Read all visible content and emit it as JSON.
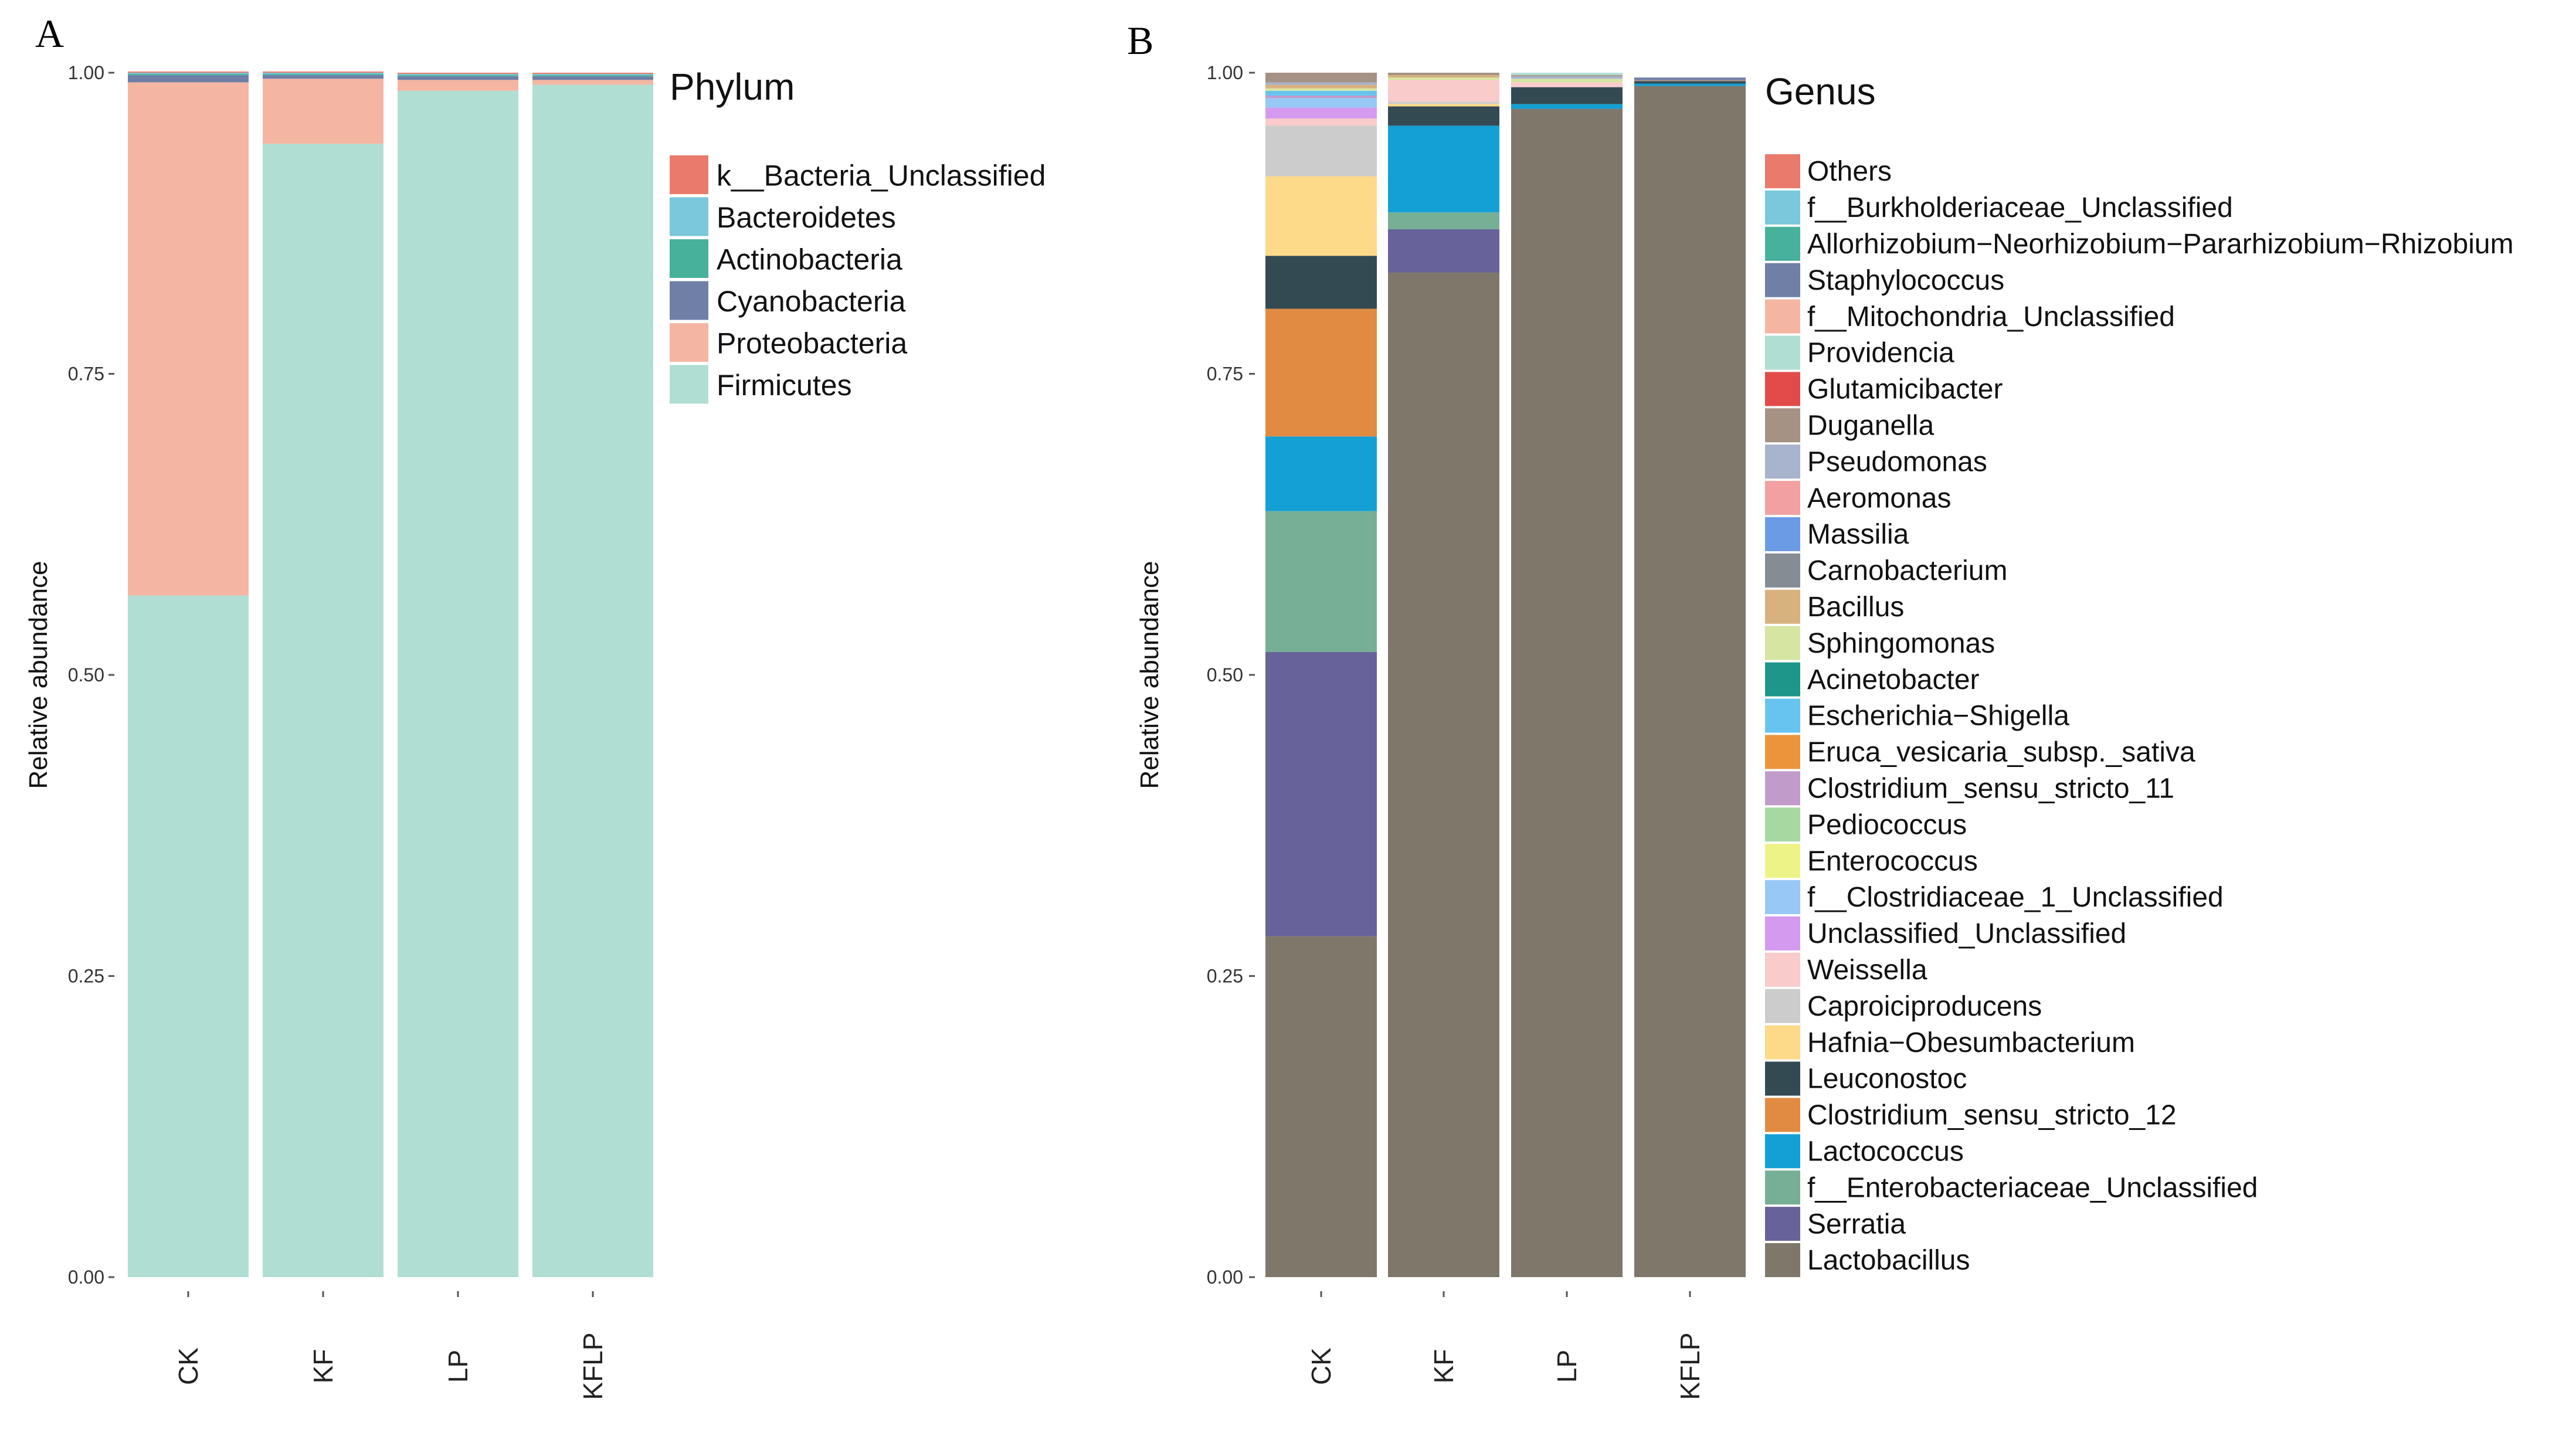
{
  "chart_data": [
    {
      "panel": "A",
      "type": "bar",
      "stacked": true,
      "title": "",
      "xlabel": "",
      "ylabel": "Relative abundance",
      "ylim": [
        0,
        1
      ],
      "yticks": [
        "0.00",
        "0.25",
        "0.50",
        "0.75",
        "1.00"
      ],
      "categories": [
        "CK",
        "KF",
        "LP",
        "KFLP"
      ],
      "legend_title": "Phylum",
      "legend_position": "right",
      "series": [
        {
          "name": "k__Bacteria_Unclassified",
          "color": "#E97A6C",
          "values": [
            0.001,
            0.001,
            0.001,
            0.001
          ]
        },
        {
          "name": "Bacteroidetes",
          "color": "#7BC7DB",
          "values": [
            0.001,
            0.001,
            0.001,
            0.001
          ]
        },
        {
          "name": "Actinobacteria",
          "color": "#47B19C",
          "values": [
            0.001,
            0.001,
            0.001,
            0.001
          ]
        },
        {
          "name": "Cyanobacteria",
          "color": "#6F7FA6",
          "values": [
            0.006,
            0.003,
            0.003,
            0.003
          ]
        },
        {
          "name": "Proteobacteria",
          "color": "#F4B6A3",
          "values": [
            0.426,
            0.054,
            0.009,
            0.004
          ]
        },
        {
          "name": "Firmicutes",
          "color": "#B1DED3",
          "values": [
            0.566,
            0.941,
            0.985,
            0.99
          ]
        }
      ]
    },
    {
      "panel": "B",
      "type": "bar",
      "stacked": true,
      "title": "",
      "xlabel": "",
      "ylabel": "Relative abundance",
      "ylim": [
        0,
        1
      ],
      "yticks": [
        "0.00",
        "0.25",
        "0.50",
        "0.75",
        "1.00"
      ],
      "categories": [
        "CK",
        "KF",
        "LP",
        "KFLP"
      ],
      "legend_title": "Genus",
      "legend_position": "right",
      "series": [
        {
          "name": "Others",
          "color": "#E97A6C",
          "values": [
            0,
            0,
            0,
            0
          ]
        },
        {
          "name": "f__Burkholderiaceae_Unclassified",
          "color": "#7BC7DB",
          "values": [
            0,
            0,
            0,
            0
          ]
        },
        {
          "name": "Allorhizobium−Neorhizobium−Pararhizobium−Rhizobium",
          "color": "#47B19C",
          "values": [
            0,
            0,
            0,
            0
          ]
        },
        {
          "name": "Staphylococcus",
          "color": "#6F7FA6",
          "values": [
            0,
            0,
            0,
            0.002
          ]
        },
        {
          "name": "f__Mitochondria_Unclassified",
          "color": "#F4B6A3",
          "values": [
            0,
            0,
            0,
            0
          ]
        },
        {
          "name": "Providencia",
          "color": "#B1DED3",
          "values": [
            0,
            0,
            0.002,
            0
          ]
        },
        {
          "name": "Glutamicibacter",
          "color": "#E34A4A",
          "values": [
            0,
            0,
            0,
            0
          ]
        },
        {
          "name": "Duganella",
          "color": "#A59285",
          "values": [
            0.008,
            0.002,
            0.001,
            0.001
          ]
        },
        {
          "name": "Pseudomonas",
          "color": "#A8B3CD",
          "values": [
            0.002,
            0,
            0.002,
            0
          ]
        },
        {
          "name": "Aeromonas",
          "color": "#F2A0A2",
          "values": [
            0,
            0,
            0,
            0
          ]
        },
        {
          "name": "Massilia",
          "color": "#6C9BE6",
          "values": [
            0,
            0,
            0,
            0
          ]
        },
        {
          "name": "Carnobacterium",
          "color": "#868C94",
          "values": [
            0,
            0,
            0,
            0
          ]
        },
        {
          "name": "Bacillus",
          "color": "#D7B27F",
          "values": [
            0.003,
            0.002,
            0,
            0
          ]
        },
        {
          "name": "Sphingomonas",
          "color": "#D6E5A1",
          "values": [
            0.002,
            0.002,
            0.003,
            0
          ]
        },
        {
          "name": "Acinetobacter",
          "color": "#1E968A",
          "values": [
            0,
            0,
            0,
            0
          ]
        },
        {
          "name": "Escherichia−Shigella",
          "color": "#67C4EE",
          "values": [
            0.004,
            0,
            0,
            0
          ]
        },
        {
          "name": "Eruca_vesicaria_subsp._sativa",
          "color": "#EC943C",
          "values": [
            0,
            0,
            0,
            0
          ]
        },
        {
          "name": "Clostridium_sensu_stricto_11",
          "color": "#C19BC9",
          "values": [
            0.002,
            0,
            0,
            0
          ]
        },
        {
          "name": "Pediococcus",
          "color": "#A7D8A1",
          "values": [
            0,
            0,
            0,
            0
          ]
        },
        {
          "name": "Enterococcus",
          "color": "#EEF388",
          "values": [
            0,
            0,
            0,
            0
          ]
        },
        {
          "name": "f__Clostridiaceae_1_Unclassified",
          "color": "#98C8F6",
          "values": [
            0.008,
            0,
            0,
            0
          ]
        },
        {
          "name": "Unclassified_Unclassified",
          "color": "#D39AF0",
          "values": [
            0.009,
            0,
            0,
            0
          ]
        },
        {
          "name": "Weissella",
          "color": "#F9CBCB",
          "values": [
            0.006,
            0.018,
            0.004,
            0
          ]
        },
        {
          "name": "Caproiciproducens",
          "color": "#CCCCCC",
          "values": [
            0.042,
            0.002,
            0,
            0
          ]
        },
        {
          "name": "Hafnia−Obesumbacterium",
          "color": "#FDD98A",
          "values": [
            0.066,
            0.002,
            0,
            0
          ]
        },
        {
          "name": "Leuconostoc",
          "color": "#344A52",
          "values": [
            0.044,
            0.016,
            0.014,
            0.002
          ]
        },
        {
          "name": "Clostridium_sensu_stricto_12",
          "color": "#E18B42",
          "values": [
            0.106,
            0,
            0,
            0
          ]
        },
        {
          "name": "Lactococcus",
          "color": "#14A0D4",
          "values": [
            0.062,
            0.072,
            0.004,
            0.002
          ]
        },
        {
          "name": "f__Enterobacteriaceae_Unclassified",
          "color": "#76AF96",
          "values": [
            0.117,
            0.014,
            0,
            0
          ]
        },
        {
          "name": "Serratia",
          "color": "#67629A",
          "values": [
            0.236,
            0.036,
            0,
            0
          ]
        },
        {
          "name": "Lactobacillus",
          "color": "#7F776A",
          "values": [
            0.283,
            0.834,
            0.97,
            0.989
          ]
        }
      ]
    }
  ]
}
